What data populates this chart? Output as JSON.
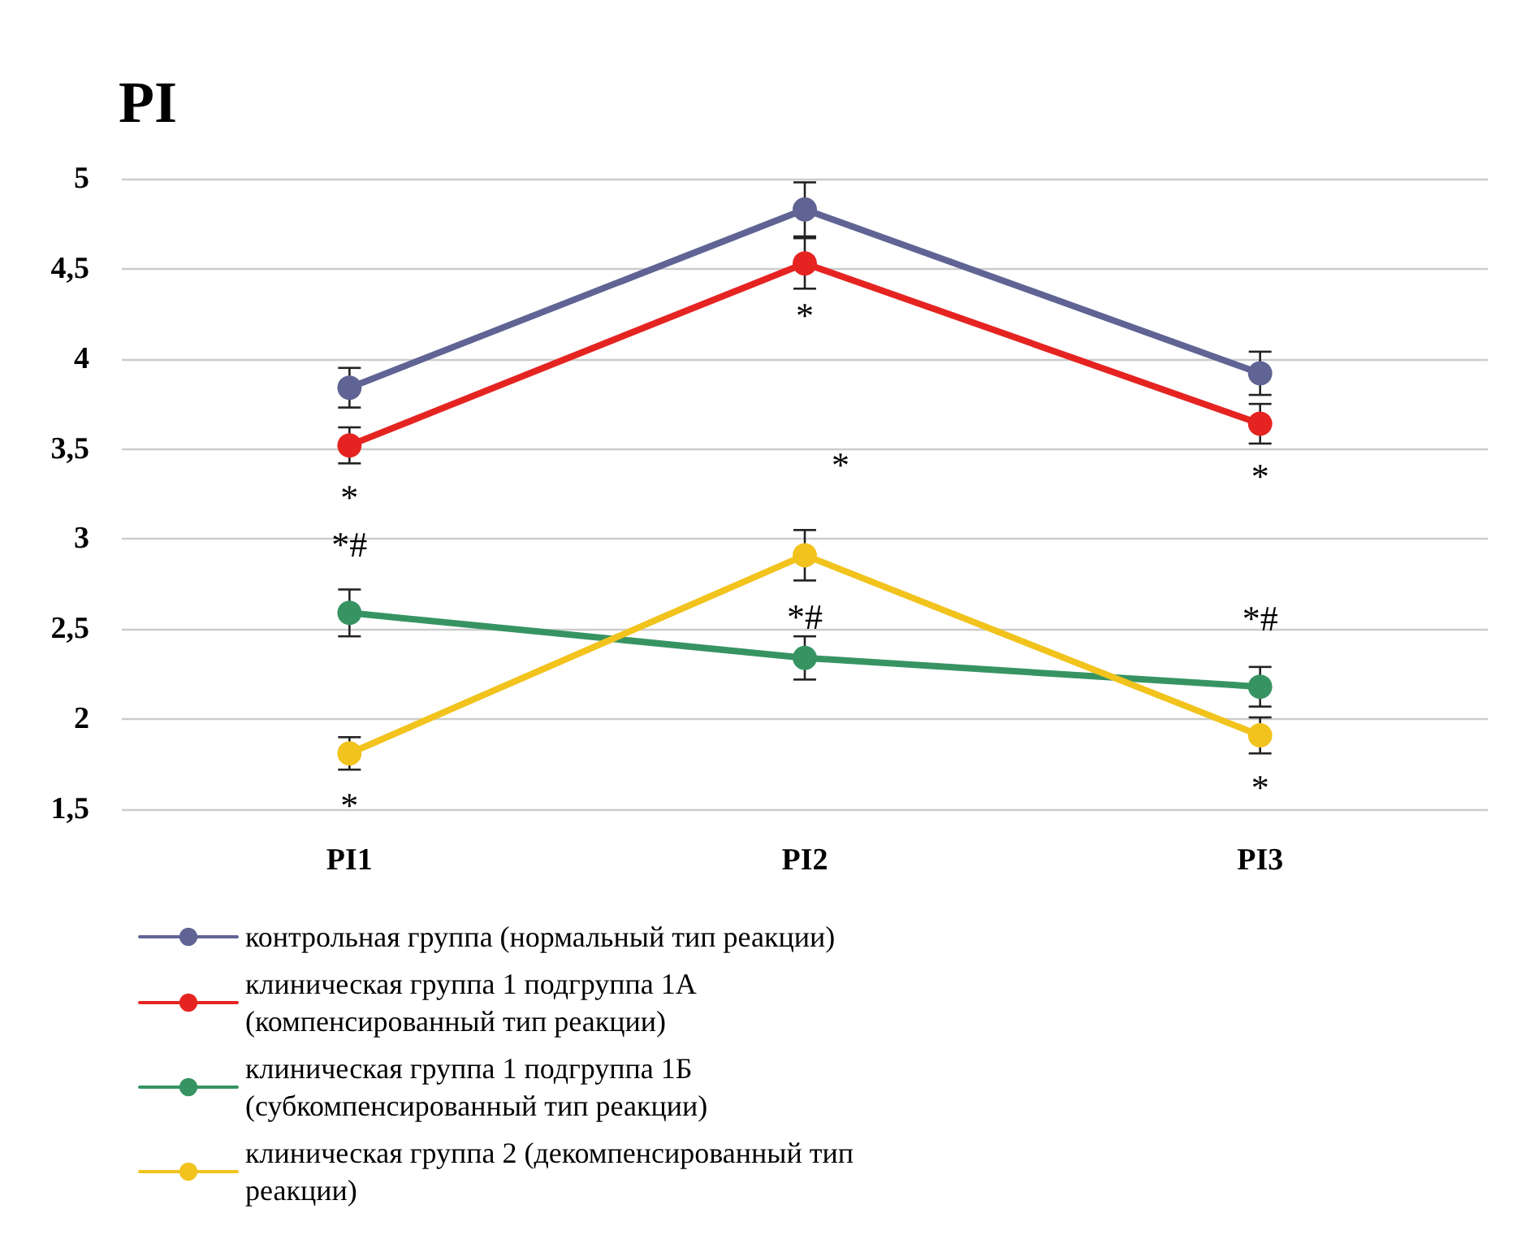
{
  "chart_data": {
    "type": "line",
    "title": "PI",
    "categories": [
      "PI1",
      "PI2",
      "PI3"
    ],
    "series": [
      {
        "name": "контрольная группа (нормальный тип реакции)",
        "color": "#5f6494",
        "values": [
          3.84,
          4.83,
          3.92
        ],
        "errors": [
          0.11,
          0.15,
          0.12
        ]
      },
      {
        "name": "клиническая группа 1 подгруппа 1А (компенсированный тип реакции)",
        "color": "#e52421",
        "values": [
          3.52,
          4.53,
          3.64
        ],
        "errors": [
          0.1,
          0.14,
          0.11
        ]
      },
      {
        "name": "клиническая группа 1 подгруппа 1Б (субкомпенсированный тип реакции)",
        "color": "#379462",
        "values": [
          2.59,
          2.34,
          2.18
        ],
        "errors": [
          0.13,
          0.12,
          0.11
        ]
      },
      {
        "name": "клиническая группа 2 (декомпенсированный тип реакции)",
        "color": "#f1c31c",
        "values": [
          1.81,
          2.91,
          1.91
        ],
        "errors": [
          0.09,
          0.14,
          0.1
        ]
      }
    ],
    "ylim": [
      1.5,
      5
    ],
    "yticks": [
      {
        "value": 1.5,
        "label": "1,5"
      },
      2,
      {
        "value": 2.5,
        "label": "2,5"
      },
      3,
      {
        "value": 3.5,
        "label": "3,5"
      },
      4,
      {
        "value": 4.5,
        "label": "4,5"
      },
      5
    ],
    "annotations": [
      "*",
      "*#",
      "*",
      "*",
      "*",
      "*#",
      "*",
      "*#",
      "*"
    ],
    "grid": "y",
    "legend": "bottom",
    "marker": "circle",
    "line_style": "solid"
  }
}
